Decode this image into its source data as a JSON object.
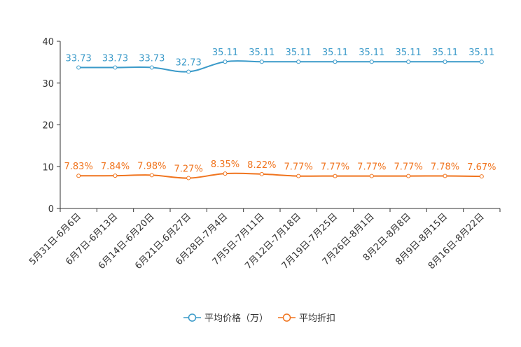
{
  "chart_data": {
    "type": "line",
    "title": "",
    "xlabel": "",
    "ylabel": "",
    "ylim": [
      0,
      40
    ],
    "yticks": [
      0,
      10,
      20,
      30,
      40
    ],
    "categories": [
      "5月31日-6月6日",
      "6月7日-6月13日",
      "6月14日-6月20日",
      "6月21日-6月27日",
      "6月28日-7月4日",
      "7月5日-7月11日",
      "7月12日-7月18日",
      "7月19日-7月25日",
      "7月26日-8月1日",
      "8月2日-8月8日",
      "8月9日-8月15日",
      "8月16日-8月22日"
    ],
    "series": [
      {
        "name": "平均价格（万）",
        "color": "#3a9ac9",
        "values": [
          33.73,
          33.73,
          33.73,
          32.73,
          35.11,
          35.11,
          35.11,
          35.11,
          35.11,
          35.11,
          35.11,
          35.11
        ],
        "labels": [
          "33.73",
          "33.73",
          "33.73",
          "32.73",
          "35.11",
          "35.11",
          "35.11",
          "35.11",
          "35.11",
          "35.11",
          "35.11",
          "35.11"
        ]
      },
      {
        "name": "平均折扣",
        "color": "#f0741e",
        "values": [
          7.83,
          7.84,
          7.98,
          7.27,
          8.35,
          8.22,
          7.77,
          7.77,
          7.77,
          7.77,
          7.78,
          7.67
        ],
        "labels": [
          "7.83%",
          "7.84%",
          "7.98%",
          "7.27%",
          "8.35%",
          "8.22%",
          "7.77%",
          "7.77%",
          "7.77%",
          "7.77%",
          "7.78%",
          "7.67%"
        ]
      }
    ],
    "legend_position": "bottom-center",
    "grid": false
  }
}
